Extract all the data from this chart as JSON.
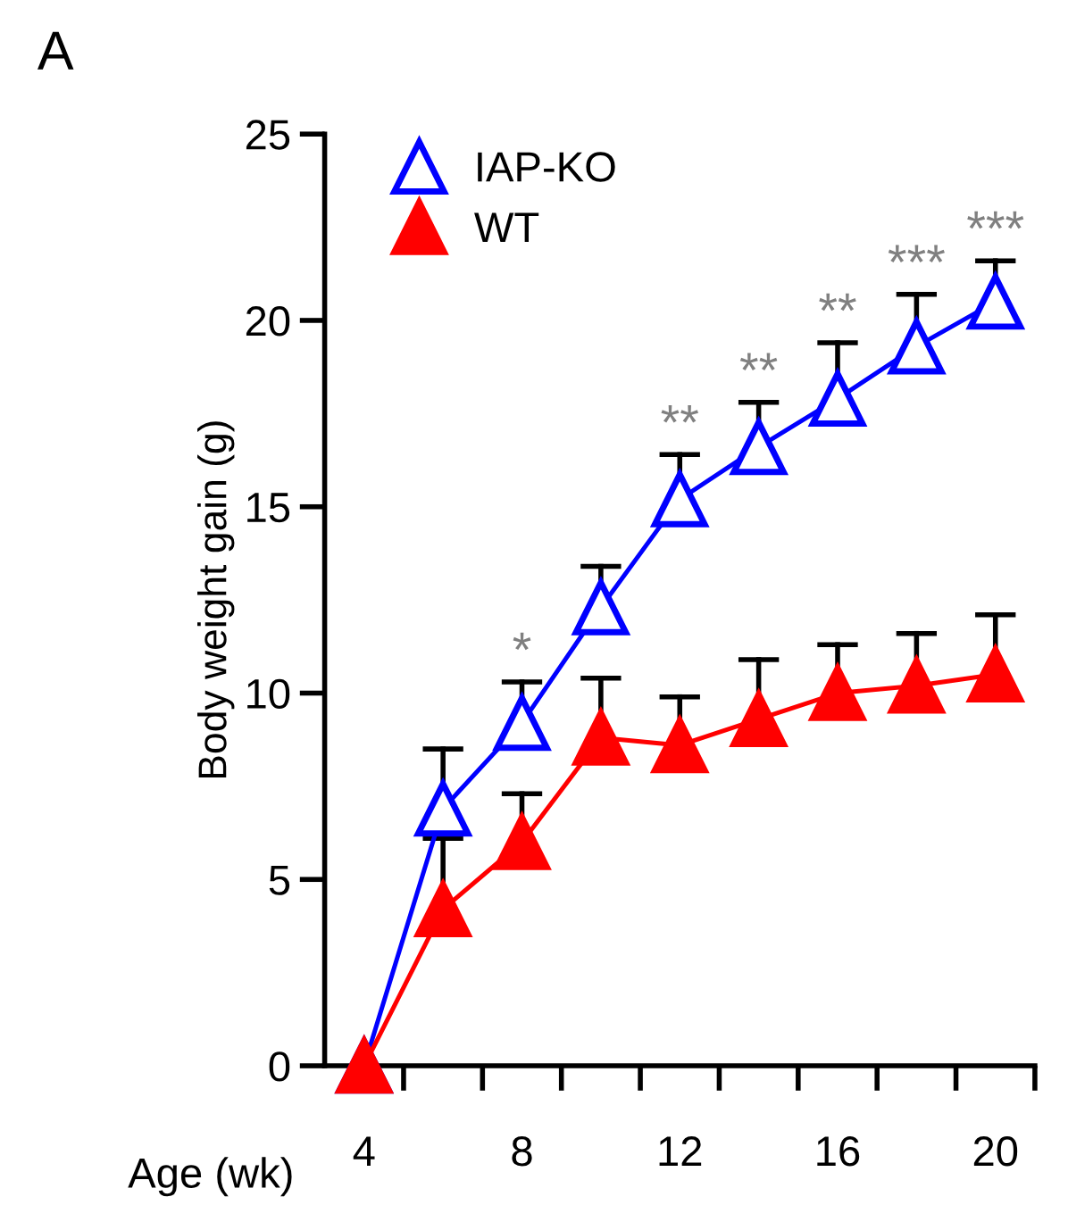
{
  "chart_data": {
    "type": "line",
    "title": "A",
    "xlabel": "Age (wk)",
    "ylabel": "Body weight gain (g)",
    "x": [
      4,
      6,
      8,
      10,
      12,
      14,
      16,
      18,
      20
    ],
    "series": [
      {
        "name": "IAP-KO",
        "color": "#0000ff",
        "marker": "triangle-open",
        "values": [
          0,
          6.9,
          9.2,
          12.3,
          15.2,
          16.6,
          17.9,
          19.3,
          20.5
        ],
        "errors": [
          null,
          [
            6.9,
            8.5
          ],
          [
            9.2,
            10.3
          ],
          [
            12.3,
            13.4
          ],
          [
            15.2,
            16.4
          ],
          [
            16.6,
            17.8
          ],
          [
            17.9,
            19.4
          ],
          [
            19.3,
            20.7
          ],
          [
            20.5,
            21.6
          ]
        ]
      },
      {
        "name": "WT",
        "color": "#ff0000",
        "marker": "triangle",
        "values": [
          0,
          4.2,
          6.0,
          8.8,
          8.6,
          9.3,
          10.0,
          10.2,
          10.5
        ],
        "errors": [
          null,
          [
            4.2,
            6.1
          ],
          [
            6.0,
            7.3
          ],
          [
            8.8,
            10.4
          ],
          [
            8.6,
            9.9
          ],
          [
            9.3,
            10.9
          ],
          [
            10.0,
            11.3
          ],
          [
            10.2,
            11.6
          ],
          [
            10.5,
            12.1
          ]
        ]
      }
    ],
    "annotations": [
      {
        "text": "*",
        "x": 8,
        "y": 10.3
      },
      {
        "text": "**",
        "x": 12,
        "y": 16.4
      },
      {
        "text": "**",
        "x": 14,
        "y": 17.8
      },
      {
        "text": "**",
        "x": 16,
        "y": 19.4
      },
      {
        "text": "***",
        "x": 18,
        "y": 20.7
      },
      {
        "text": "***",
        "x": 20,
        "y": 21.6
      }
    ],
    "xlim": [
      3,
      21
    ],
    "xticks": [
      {
        "value": 4,
        "label": "4"
      },
      {
        "value": 8,
        "label": "8"
      },
      {
        "value": 12,
        "label": "12"
      },
      {
        "value": 16,
        "label": "16"
      },
      {
        "value": 20,
        "label": "20"
      },
      {
        "value": 5,
        "label": null
      },
      {
        "value": 7,
        "label": null
      },
      {
        "value": 9,
        "label": null
      },
      {
        "value": 11,
        "label": null
      },
      {
        "value": 13,
        "label": null
      },
      {
        "value": 15,
        "label": null
      },
      {
        "value": 17,
        "label": null
      },
      {
        "value": 19,
        "label": null
      },
      {
        "value": 21,
        "label": null
      }
    ],
    "ylim": [
      0,
      25
    ],
    "yticks": [
      0,
      5,
      10,
      15,
      20,
      25
    ],
    "grid": false,
    "legend": "top left",
    "line_style": "solid"
  }
}
